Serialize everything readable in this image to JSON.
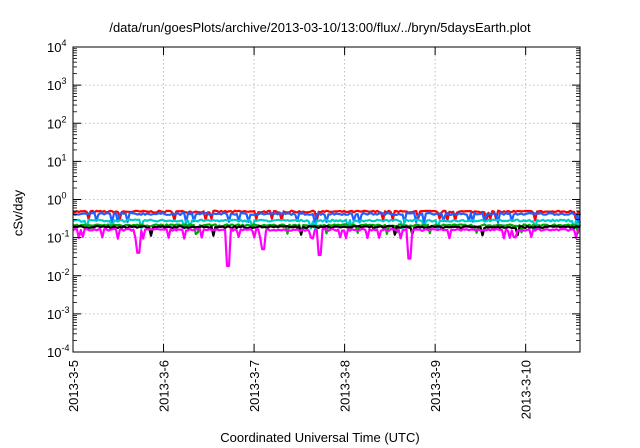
{
  "chart_data": {
    "type": "line",
    "title": "/data/run/goesPlots/archive/2013-03-10/13:00/flux/../bryn/5daysEarth.plot",
    "xlabel": "Coordinated Universal Time (UTC)",
    "ylabel": "cSv/day",
    "x_ticks": [
      "2013-3-5",
      "2013-3-6",
      "2013-3-7",
      "2013-3-8",
      "2013-3-9",
      "2013-3-10"
    ],
    "xlim_days": [
      0,
      5.6
    ],
    "yscale": "log",
    "ylim": [
      0.0001,
      10000
    ],
    "y_ticks": [
      {
        "base": "10",
        "exp": "-4"
      },
      {
        "base": "10",
        "exp": "-3"
      },
      {
        "base": "10",
        "exp": "-2"
      },
      {
        "base": "10",
        "exp": "-1"
      },
      {
        "base": "10",
        "exp": "0"
      },
      {
        "base": "10",
        "exp": "1"
      },
      {
        "base": "10",
        "exp": "2"
      },
      {
        "base": "10",
        "exp": "3"
      },
      {
        "base": "10",
        "exp": "4"
      }
    ],
    "grid": true,
    "legend": "none",
    "series": [
      {
        "color": "#ff0000",
        "approx_level": 0.48
      },
      {
        "color": "#2060ff",
        "approx_level": 0.42
      },
      {
        "color": "#00cccc",
        "approx_level": 0.28
      },
      {
        "color": "#00aa00",
        "approx_level": 0.21
      },
      {
        "color": "#000000",
        "approx_level": 0.19
      },
      {
        "color": "#ff00ff",
        "approx_level": 0.16
      }
    ],
    "dips": [
      {
        "series_color": "#ff00ff",
        "x_days": 0.72,
        "y": 0.04
      },
      {
        "series_color": "#ff00ff",
        "x_days": 1.72,
        "y": 0.018
      },
      {
        "series_color": "#ff00ff",
        "x_days": 2.1,
        "y": 0.05
      },
      {
        "series_color": "#ff00ff",
        "x_days": 2.72,
        "y": 0.035
      },
      {
        "series_color": "#ff00ff",
        "x_days": 3.72,
        "y": 0.028
      }
    ]
  }
}
